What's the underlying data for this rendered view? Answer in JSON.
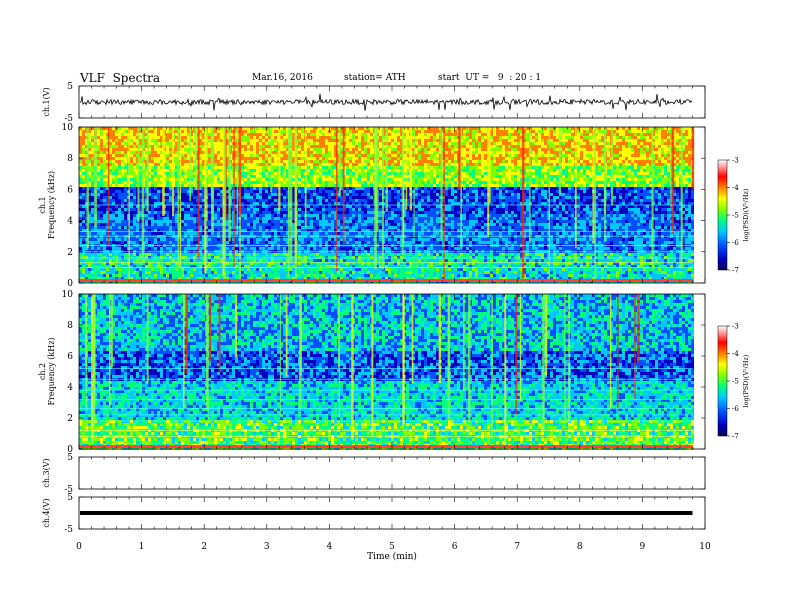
{
  "header": {
    "title": "VLF  Spectra",
    "date": "Mar.16, 2016",
    "station": "station= ATH",
    "start": "start  UT =   9  : 20 : 1"
  },
  "chart_data": [
    {
      "type": "line",
      "panel": "ch1-waveform",
      "ylabel": "ch.1(V)",
      "ylim": [
        -5,
        5
      ],
      "yticks": [
        "5",
        "-5"
      ],
      "xlim": [
        0,
        10
      ],
      "trace_end_min": 9.8,
      "approx_level_V": 0
    },
    {
      "type": "heatmap",
      "panel": "ch1-spectrogram",
      "ylabel": "ch.1\nFrequency (kHz)",
      "ylim": [
        0,
        10
      ],
      "yticks": [
        "0",
        "2",
        "4",
        "6",
        "8",
        "10"
      ],
      "xlim": [
        0,
        10
      ],
      "colorbar": {
        "label": "log(PSD)(V²/Hz)",
        "range": [
          -7,
          -3
        ],
        "ticks": [
          "-3",
          "-4",
          "-5",
          "-6",
          "-7"
        ]
      },
      "color_scale": [
        "#000050",
        "#0000c0",
        "#0050ff",
        "#00c8ff",
        "#00ff80",
        "#80ff00",
        "#ffff00",
        "#ff8000",
        "#ff0000",
        "#ff9090",
        "#ffffff"
      ]
    },
    {
      "type": "heatmap",
      "panel": "ch2-spectrogram",
      "ylabel": "ch.2\nFrequency (kHz)",
      "ylim": [
        0,
        10
      ],
      "yticks": [
        "0",
        "2",
        "4",
        "6",
        "8",
        "10"
      ],
      "xlim": [
        0,
        10
      ],
      "colorbar": {
        "label": "log(PSD)(V²/Hz)",
        "range": [
          -7,
          -3
        ],
        "ticks": [
          "-3",
          "-4",
          "-5",
          "-6",
          "-7"
        ]
      }
    },
    {
      "type": "line",
      "panel": "ch3-waveform",
      "ylabel": "ch.3(V)",
      "ylim": [
        -5,
        5
      ],
      "yticks": [
        "5",
        "-5"
      ],
      "xlim": [
        0,
        10
      ],
      "note_empty": true
    },
    {
      "type": "line",
      "panel": "ch4-waveform",
      "ylabel": "ch.4(V)",
      "ylim": [
        -5,
        5
      ],
      "yticks": [
        "5",
        "-5"
      ],
      "xlim": [
        0,
        10
      ],
      "approx_level_V": 0,
      "trace_end_min": 9.8,
      "xlabel": "Time  (min)",
      "xticks": [
        "0",
        "1",
        "2",
        "3",
        "4",
        "5",
        "6",
        "7",
        "8",
        "9",
        "10"
      ]
    }
  ]
}
